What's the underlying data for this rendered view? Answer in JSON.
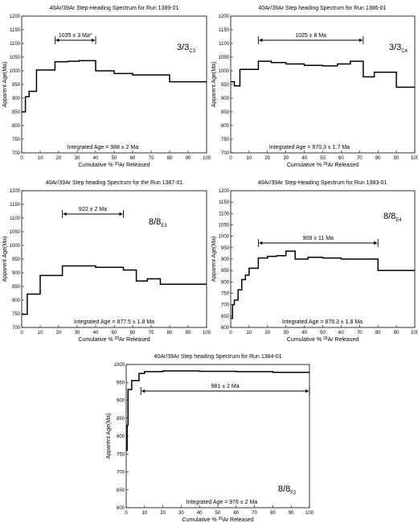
{
  "chart_data": [
    {
      "type": "step",
      "title_prefix": "40Ar/39Ar",
      "title": "Step-Heading Spectrum for Run 1389-01",
      "sample_main": "3/3",
      "sample_sub": "C3",
      "plateau_label": "1035 ± 3 Ma*",
      "plateau_range": [
        18,
        40
      ],
      "integrated_label": "Integrated Age = 988 ± 2 Ma",
      "xlabel_prefix": "Cumulative %",
      "xlabel_iso": "39",
      "xlabel_suffix": "Ar Released",
      "ylabel": "Apparent Age(Ma)",
      "xlim": [
        0,
        100
      ],
      "ylim": [
        700,
        1200
      ],
      "x_ticks": [
        0,
        10,
        20,
        30,
        40,
        50,
        60,
        70,
        80,
        90,
        100
      ],
      "y_ticks": [
        700,
        750,
        800,
        850,
        900,
        950,
        1000,
        1050,
        1100,
        1150,
        1200
      ],
      "steps": [
        {
          "x0": 0,
          "x1": 2,
          "y": 850
        },
        {
          "x0": 2,
          "x1": 4,
          "y": 905
        },
        {
          "x0": 4,
          "x1": 8,
          "y": 925
        },
        {
          "x0": 8,
          "x1": 18,
          "y": 1003
        },
        {
          "x0": 18,
          "x1": 25,
          "y": 1033
        },
        {
          "x0": 25,
          "x1": 31,
          "y": 1035
        },
        {
          "x0": 31,
          "x1": 40,
          "y": 1037
        },
        {
          "x0": 40,
          "x1": 50,
          "y": 1000
        },
        {
          "x0": 50,
          "x1": 60,
          "y": 990
        },
        {
          "x0": 60,
          "x1": 70,
          "y": 985
        },
        {
          "x0": 70,
          "x1": 80,
          "y": 985
        },
        {
          "x0": 80,
          "x1": 100,
          "y": 960
        }
      ]
    },
    {
      "type": "step",
      "title_prefix": "40Ar/39Ar",
      "title": "Step heading Spectrum for Run 1386-01",
      "sample_main": "3/3",
      "sample_sub": "C4",
      "plateau_label": "1025 ± 8 Ma",
      "plateau_range": [
        15,
        72
      ],
      "integrated_label": "Integrated Age = 970.3 ± 1.7 Ma",
      "xlabel_prefix": "Cumulative %",
      "xlabel_iso": "39",
      "xlabel_suffix": "Ar Released",
      "ylabel": "Apparent Age(Ma)",
      "xlim": [
        0,
        100
      ],
      "ylim": [
        700,
        1200
      ],
      "x_ticks": [
        0,
        10,
        20,
        30,
        40,
        50,
        60,
        70,
        80,
        90,
        100
      ],
      "y_ticks": [
        700,
        750,
        800,
        850,
        900,
        950,
        1000,
        1050,
        1100,
        1150,
        1200
      ],
      "steps": [
        {
          "x0": 0,
          "x1": 2,
          "y": 960
        },
        {
          "x0": 2,
          "x1": 5,
          "y": 945
        },
        {
          "x0": 5,
          "x1": 15,
          "y": 1005
        },
        {
          "x0": 15,
          "x1": 22,
          "y": 1035
        },
        {
          "x0": 22,
          "x1": 30,
          "y": 1030
        },
        {
          "x0": 30,
          "x1": 40,
          "y": 1025
        },
        {
          "x0": 40,
          "x1": 50,
          "y": 1020
        },
        {
          "x0": 50,
          "x1": 58,
          "y": 1018
        },
        {
          "x0": 58,
          "x1": 65,
          "y": 1025
        },
        {
          "x0": 65,
          "x1": 72,
          "y": 1035
        },
        {
          "x0": 72,
          "x1": 78,
          "y": 978
        },
        {
          "x0": 78,
          "x1": 90,
          "y": 995
        },
        {
          "x0": 90,
          "x1": 100,
          "y": 940
        }
      ]
    },
    {
      "type": "step",
      "title_prefix": "40Ar/39Ar",
      "title": "Step heading Spectrum for the Run 1387-01",
      "sample_main": "8/8",
      "sample_sub": "E3",
      "plateau_label": "922 ± 2 Ma",
      "plateau_range": [
        22,
        55
      ],
      "integrated_label": "Integrated Age = 877.5 ± 1.8 Ma",
      "xlabel_prefix": "Cumulative %",
      "xlabel_iso": "39",
      "xlabel_suffix": "Ar Released",
      "ylabel": "Apparent Age(Ma)",
      "xlim": [
        0,
        100
      ],
      "ylim": [
        700,
        1200
      ],
      "x_ticks": [
        0,
        10,
        20,
        30,
        40,
        50,
        60,
        70,
        80,
        90,
        100
      ],
      "y_ticks": [
        700,
        750,
        800,
        850,
        900,
        950,
        1000,
        1050,
        1100,
        1150,
        1200
      ],
      "steps": [
        {
          "x0": 0,
          "x1": 3,
          "y": 748
        },
        {
          "x0": 3,
          "x1": 10,
          "y": 822
        },
        {
          "x0": 10,
          "x1": 22,
          "y": 890
        },
        {
          "x0": 22,
          "x1": 40,
          "y": 925
        },
        {
          "x0": 40,
          "x1": 55,
          "y": 920
        },
        {
          "x0": 55,
          "x1": 62,
          "y": 910
        },
        {
          "x0": 62,
          "x1": 68,
          "y": 870
        },
        {
          "x0": 68,
          "x1": 75,
          "y": 878
        },
        {
          "x0": 75,
          "x1": 100,
          "y": 858
        }
      ]
    },
    {
      "type": "step",
      "title_prefix": "40Ar/39Ar",
      "title": "Step-Heading Spectrum for Run 1383-01",
      "sample_main": "8/8",
      "sample_sub": "E4",
      "plateau_label": "908 ± 11 Ma",
      "plateau_range": [
        15,
        80
      ],
      "integrated_label": "Integrated Age = 878.3 ± 1.8 Ma",
      "xlabel_prefix": "Cumulative %",
      "xlabel_iso": "39",
      "xlabel_suffix": "Ar Released",
      "ylabel": "Apparent Age(Ma)",
      "xlim": [
        0,
        100
      ],
      "ylim": [
        600,
        1200
      ],
      "x_ticks": [
        0,
        10,
        20,
        30,
        40,
        50,
        60,
        70,
        80,
        90,
        100
      ],
      "y_ticks": [
        600,
        650,
        700,
        750,
        800,
        850,
        900,
        950,
        1000,
        1050,
        1100,
        1150,
        1200
      ],
      "steps": [
        {
          "x0": 0,
          "x1": 1,
          "y": 640
        },
        {
          "x0": 1,
          "x1": 2,
          "y": 700
        },
        {
          "x0": 2,
          "x1": 4,
          "y": 720
        },
        {
          "x0": 4,
          "x1": 6,
          "y": 765
        },
        {
          "x0": 6,
          "x1": 8,
          "y": 810
        },
        {
          "x0": 8,
          "x1": 10,
          "y": 830
        },
        {
          "x0": 10,
          "x1": 15,
          "y": 860
        },
        {
          "x0": 15,
          "x1": 20,
          "y": 905
        },
        {
          "x0": 20,
          "x1": 25,
          "y": 912
        },
        {
          "x0": 25,
          "x1": 30,
          "y": 915
        },
        {
          "x0": 30,
          "x1": 35,
          "y": 935
        },
        {
          "x0": 35,
          "x1": 42,
          "y": 900
        },
        {
          "x0": 42,
          "x1": 50,
          "y": 908
        },
        {
          "x0": 50,
          "x1": 60,
          "y": 905
        },
        {
          "x0": 60,
          "x1": 70,
          "y": 900
        },
        {
          "x0": 70,
          "x1": 80,
          "y": 900
        },
        {
          "x0": 80,
          "x1": 100,
          "y": 850
        }
      ]
    },
    {
      "type": "step",
      "title_prefix": "40Ar/39Ar",
      "title": "Step heading Spectrum for Run 1384-01",
      "sample_main": "8/8",
      "sample_sub": "F2",
      "plateau_label": "981 ± 2 Ma",
      "plateau_range": [
        8,
        100
      ],
      "integrated_label": "Integrated Age = 976 ± 2 Ma",
      "xlabel_prefix": "Cumulative %",
      "xlabel_iso": "39",
      "xlabel_suffix": "Ar Released",
      "ylabel": "Apparent Age(Ma)",
      "xlim": [
        0,
        100
      ],
      "ylim": [
        600,
        1000
      ],
      "x_ticks": [
        0,
        10,
        20,
        30,
        40,
        50,
        60,
        70,
        80,
        90,
        100
      ],
      "y_ticks": [
        600,
        650,
        700,
        750,
        800,
        850,
        900,
        950,
        1000
      ],
      "steps": [
        {
          "x0": 0,
          "x1": 0.5,
          "y": 760
        },
        {
          "x0": 0.5,
          "x1": 1,
          "y": 830
        },
        {
          "x0": 1,
          "x1": 3,
          "y": 930
        },
        {
          "x0": 3,
          "x1": 7,
          "y": 955
        },
        {
          "x0": 7,
          "x1": 10,
          "y": 975
        },
        {
          "x0": 10,
          "x1": 20,
          "y": 980
        },
        {
          "x0": 20,
          "x1": 40,
          "y": 982
        },
        {
          "x0": 40,
          "x1": 60,
          "y": 981
        },
        {
          "x0": 60,
          "x1": 80,
          "y": 980
        },
        {
          "x0": 80,
          "x1": 100,
          "y": 978
        }
      ]
    }
  ]
}
